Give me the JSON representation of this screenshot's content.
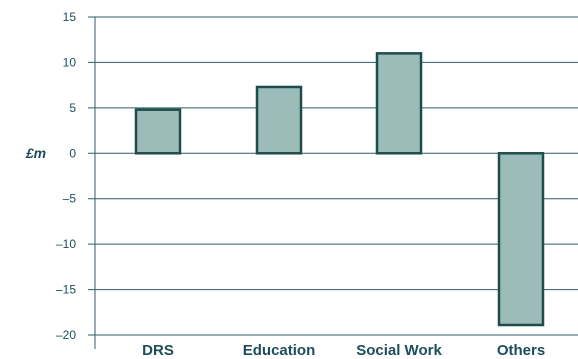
{
  "chart_data": {
    "type": "bar",
    "title": "",
    "xlabel": "",
    "ylabel": "£m",
    "categories": [
      "DRS",
      "Education",
      "Social Work",
      "Others"
    ],
    "values": [
      4.8,
      7.3,
      11.0,
      -18.9
    ],
    "ylim": [
      -20,
      15
    ],
    "yticks": [
      "15",
      "10",
      "5",
      "0",
      "–5",
      "–10",
      "–15",
      "–20"
    ],
    "ytick_values": [
      15,
      10,
      5,
      0,
      -5,
      -10,
      -15,
      -20
    ],
    "grid": true,
    "legend": "none",
    "colors": {
      "bar_fill": "#9cbcb9",
      "bar_stroke": "#1e4d4a",
      "grid": "#2f5e68",
      "text": "#1e4d5c"
    }
  }
}
